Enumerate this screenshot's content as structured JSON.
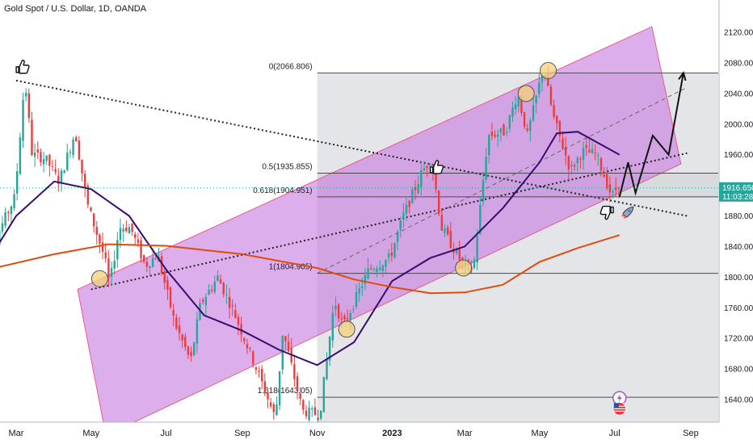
{
  "chart_data": {
    "type": "candlestick",
    "title": "Gold Spot / U.S. Dollar, 1D, OANDA",
    "y_axis": {
      "position": "right",
      "ticks": [
        2120,
        2080,
        2040,
        2000,
        1960,
        1920,
        1880,
        1840,
        1800,
        1760,
        1720,
        1680,
        1640
      ],
      "tick_labels": [
        "2120.000",
        "2080.000",
        "2040.000",
        "2000.000",
        "1960.000",
        "1920.000",
        "1880.000",
        "1840.000",
        "1800.000",
        "1760.000",
        "1720.000",
        "1680.000",
        "1640.000"
      ],
      "range": [
        1616,
        2162
      ]
    },
    "x_axis": {
      "labels": [
        {
          "label": "Mar",
          "date": "2022-03-01"
        },
        {
          "label": "May",
          "date": "2022-05-01"
        },
        {
          "label": "Jul",
          "date": "2022-07-01"
        },
        {
          "label": "Sep",
          "date": "2022-09-01"
        },
        {
          "label": "Nov",
          "date": "2022-11-01"
        },
        {
          "label": "2023",
          "date": "2023-01-01",
          "bold": true
        },
        {
          "label": "Mar",
          "date": "2023-03-01"
        },
        {
          "label": "May",
          "date": "2023-05-01"
        },
        {
          "label": "Jul",
          "date": "2023-07-01"
        },
        {
          "label": "Sep",
          "date": "2023-09-01"
        }
      ]
    },
    "price": {
      "last": "1916.650",
      "countdown": "11:03:28",
      "last_value": 1916.65
    },
    "price_path": [
      [
        "2022-02-01",
        1800
      ],
      [
        "2022-02-15",
        1860
      ],
      [
        "2022-02-28",
        1905
      ],
      [
        "2022-03-08",
        2060
      ],
      [
        "2022-03-14",
        1960
      ],
      [
        "2022-03-25",
        1955
      ],
      [
        "2022-04-05",
        1925
      ],
      [
        "2022-04-18",
        1990
      ],
      [
        "2022-04-28",
        1895
      ],
      [
        "2022-05-12",
        1825
      ],
      [
        "2022-05-16",
        1790
      ],
      [
        "2022-05-24",
        1865
      ],
      [
        "2022-06-02",
        1865
      ],
      [
        "2022-06-14",
        1815
      ],
      [
        "2022-06-24",
        1830
      ],
      [
        "2022-07-08",
        1740
      ],
      [
        "2022-07-21",
        1690
      ],
      [
        "2022-07-29",
        1765
      ],
      [
        "2022-08-12",
        1800
      ],
      [
        "2022-08-25",
        1755
      ],
      [
        "2022-09-15",
        1670
      ],
      [
        "2022-09-28",
        1615
      ],
      [
        "2022-10-04",
        1730
      ],
      [
        "2022-10-20",
        1625
      ],
      [
        "2022-11-03",
        1620
      ],
      [
        "2022-11-15",
        1770
      ],
      [
        "2022-11-22",
        1735
      ],
      [
        "2022-12-13",
        1810
      ],
      [
        "2022-12-30",
        1825
      ],
      [
        "2023-01-10",
        1880
      ],
      [
        "2023-01-26",
        1940
      ],
      [
        "2023-02-02",
        1955
      ],
      [
        "2023-02-10",
        1865
      ],
      [
        "2023-02-28",
        1815
      ],
      [
        "2023-03-08",
        1810
      ],
      [
        "2023-03-20",
        1985
      ],
      [
        "2023-04-03",
        1990
      ],
      [
        "2023-04-13",
        2040
      ],
      [
        "2023-04-21",
        1985
      ],
      [
        "2023-05-04",
        2075
      ],
      [
        "2023-05-12",
        2010
      ],
      [
        "2023-05-26",
        1940
      ],
      [
        "2023-06-05",
        1965
      ],
      [
        "2023-06-16",
        1960
      ],
      [
        "2023-06-29",
        1905
      ],
      [
        "2023-07-05",
        1925
      ]
    ],
    "indicators": [
      {
        "type": "moving_average",
        "color": "#3b0a6e",
        "points": [
          [
            "2022-02-01",
            1808
          ],
          [
            "2022-03-01",
            1880
          ],
          [
            "2022-04-01",
            1925
          ],
          [
            "2022-05-01",
            1915
          ],
          [
            "2022-06-01",
            1880
          ],
          [
            "2022-07-01",
            1810
          ],
          [
            "2022-08-01",
            1750
          ],
          [
            "2022-09-01",
            1730
          ],
          [
            "2022-10-01",
            1705
          ],
          [
            "2022-11-01",
            1685
          ],
          [
            "2022-12-01",
            1715
          ],
          [
            "2023-01-01",
            1795
          ],
          [
            "2023-02-01",
            1825
          ],
          [
            "2023-03-01",
            1840
          ],
          [
            "2023-04-01",
            1890
          ],
          [
            "2023-05-01",
            1950
          ],
          [
            "2023-05-15",
            1988
          ],
          [
            "2023-06-01",
            1990
          ],
          [
            "2023-07-05",
            1960
          ]
        ]
      },
      {
        "type": "moving_average",
        "color": "#e04a0c",
        "points": [
          [
            "2022-02-01",
            1808
          ],
          [
            "2022-04-01",
            1830
          ],
          [
            "2022-05-15",
            1843
          ],
          [
            "2022-07-01",
            1841
          ],
          [
            "2022-09-01",
            1830
          ],
          [
            "2022-11-01",
            1812
          ],
          [
            "2022-12-01",
            1797
          ],
          [
            "2023-01-01",
            1787
          ],
          [
            "2023-02-01",
            1779
          ],
          [
            "2023-03-01",
            1780
          ],
          [
            "2023-04-01",
            1790
          ],
          [
            "2023-05-01",
            1820
          ],
          [
            "2023-06-01",
            1838
          ],
          [
            "2023-07-05",
            1855
          ]
        ]
      }
    ],
    "fibonacci": {
      "levels": [
        {
          "ratio": "0",
          "label": "0(2066.806)",
          "price": 2066.806
        },
        {
          "ratio": "0.5",
          "label": "0.5(1935.855)",
          "price": 1935.855
        },
        {
          "ratio": "0.618",
          "label": "0.618(1904.951)",
          "price": 1904.951
        },
        {
          "ratio": "1",
          "label": "1(1804.905)",
          "price": 1804.905
        },
        {
          "ratio": "1.618",
          "label": "1.618(1643.05)",
          "price": 1643.05
        }
      ],
      "start_date": "2022-11-01"
    },
    "channel": {
      "color": "#c87de0",
      "lower_line": [
        [
          "2022-04-20",
          1784
        ],
        [
          "2023-08-24",
          1948
        ]
      ],
      "width_price": 340
    },
    "downtrend_line": [
      [
        "2022-03-01",
        2057
      ],
      [
        "2023-08-29",
        1880
      ]
    ],
    "lower_dotted_line": [
      [
        "2022-05-01",
        1784
      ],
      [
        "2023-08-29",
        1962
      ]
    ],
    "center_dashed_line": [
      [
        "2022-11-01",
        1805
      ],
      [
        "2023-08-29",
        2048
      ]
    ],
    "projection_path": [
      [
        "2023-07-05",
        1905
      ],
      [
        "2023-07-12",
        1950
      ],
      [
        "2023-07-18",
        1910
      ],
      [
        "2023-08-01",
        1985
      ],
      [
        "2023-08-14",
        1960
      ],
      [
        "2023-08-26",
        2067
      ]
    ],
    "circle_markers": [
      {
        "date": "2022-05-08",
        "price": 1798
      },
      {
        "date": "2022-11-25",
        "price": 1732
      },
      {
        "date": "2023-02-28",
        "price": 1812
      },
      {
        "date": "2023-04-20",
        "price": 2040
      },
      {
        "date": "2023-05-08",
        "price": 2070
      }
    ],
    "thumb_up": [
      {
        "date": "2022-03-05",
        "price": 2077
      },
      {
        "date": "2023-02-05",
        "price": 1946
      }
    ],
    "thumb_down": [
      {
        "date": "2023-06-26",
        "price": 1882
      }
    ],
    "icons": [
      "thumbs-up-icon",
      "thumbs-down-icon",
      "rocket-icon",
      "lightning-icon",
      "us-flag-icon"
    ]
  }
}
